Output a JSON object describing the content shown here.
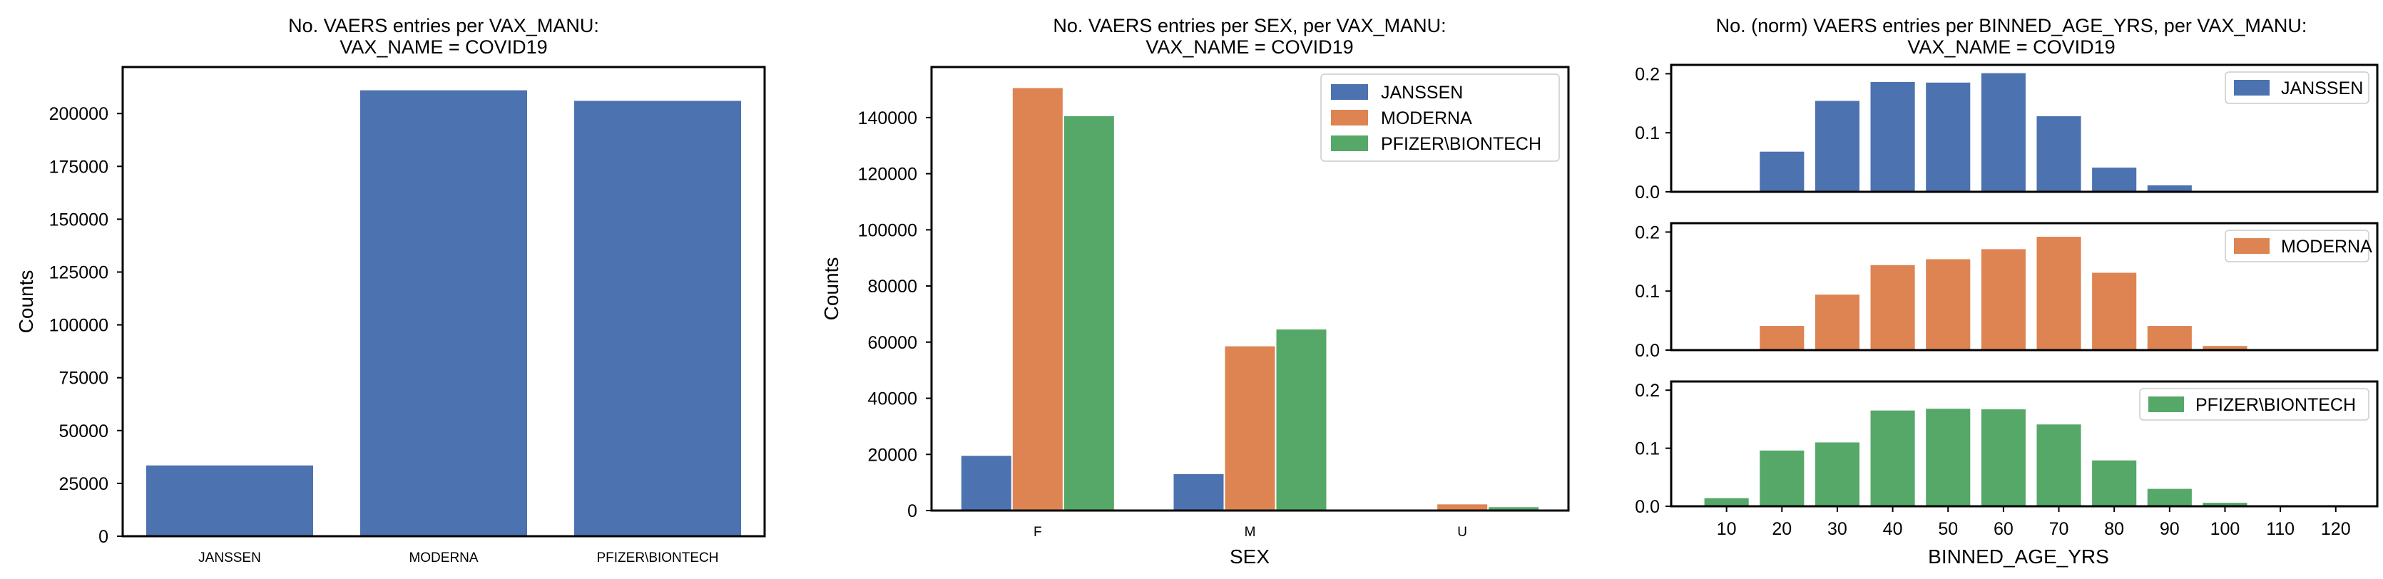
{
  "figure": {
    "background": "#ffffff",
    "colors": {
      "JANSSEN": "#4c72b0",
      "MODERNA": "#dd8452",
      "PFIZER\\BIONTECH": "#55a868"
    }
  },
  "chart_data": [
    {
      "type": "bar",
      "title": "No. VAERS entries per VAX_MANU:",
      "subtitle": "VAX_NAME = COVID19",
      "xlabel": "",
      "ylabel": "Counts",
      "categories": [
        "JANSSEN",
        "MODERNA",
        "PFIZER\\BIONTECH"
      ],
      "values": [
        33500,
        211000,
        206000
      ],
      "ylim": [
        0,
        222000
      ],
      "yticks": [
        0,
        25000,
        50000,
        75000,
        100000,
        125000,
        150000,
        175000,
        200000
      ],
      "grid": false,
      "legend": "none"
    },
    {
      "type": "bar",
      "title": "No. VAERS entries per SEX, per VAX_MANU:",
      "subtitle": "VAX_NAME = COVID19",
      "xlabel": "SEX",
      "ylabel": "Counts",
      "categories": [
        "F",
        "M",
        "U"
      ],
      "series": [
        {
          "name": "JANSSEN",
          "values": [
            19500,
            13000,
            300
          ]
        },
        {
          "name": "MODERNA",
          "values": [
            150500,
            58500,
            2200
          ]
        },
        {
          "name": "PFIZER\\BIONTECH",
          "values": [
            140500,
            64500,
            1200
          ]
        }
      ],
      "ylim": [
        0,
        158000
      ],
      "yticks": [
        0,
        20000,
        40000,
        60000,
        80000,
        100000,
        120000,
        140000
      ],
      "grid": false,
      "legend": "top-right"
    },
    {
      "type": "bar",
      "title": "No. (norm) VAERS entries per BINNED_AGE_YRS, per VAX_MANU:",
      "subtitle": "VAX_NAME = COVID19",
      "xlabel": "BINNED_AGE_YRS",
      "ylabel": "",
      "categories": [
        "10",
        "20",
        "30",
        "40",
        "50",
        "60",
        "70",
        "80",
        "90",
        "100",
        "110",
        "120"
      ],
      "ylim": [
        0,
        0.215
      ],
      "yticks": [
        0.0,
        0.1,
        0.2
      ],
      "ytick_labels": [
        "0.0",
        "0.1",
        "0.2"
      ],
      "grid": false,
      "legend": "top-right",
      "series": [
        {
          "name": "JANSSEN",
          "values": [
            0.0,
            0.068,
            0.154,
            0.186,
            0.185,
            0.201,
            0.128,
            0.041,
            0.011,
            0.0,
            0.0,
            0.0
          ]
        },
        {
          "name": "MODERNA",
          "values": [
            0.0,
            0.041,
            0.094,
            0.144,
            0.154,
            0.171,
            0.192,
            0.131,
            0.041,
            0.007,
            0.0,
            0.0
          ]
        },
        {
          "name": "PFIZER\\BIONTECH",
          "values": [
            0.014,
            0.096,
            0.11,
            0.165,
            0.168,
            0.167,
            0.141,
            0.079,
            0.03,
            0.006,
            0.0,
            0.0
          ]
        }
      ]
    }
  ]
}
